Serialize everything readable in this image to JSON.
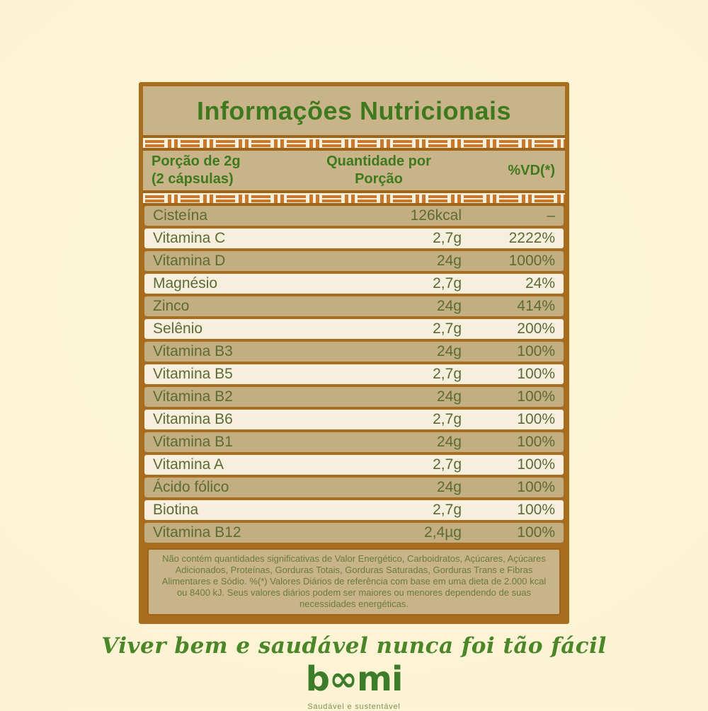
{
  "page": {
    "tagline": "Viver bem e saudável nunca foi tão fácil",
    "brand": {
      "logo_text": "boomi",
      "logo_display": "b∞mi",
      "slogan": "Saudável e sustentável"
    }
  },
  "table": {
    "title": "Informações Nutricionais",
    "header": {
      "portion_line1": "Porção de 2g",
      "portion_line2": "(2 cápsulas)",
      "amount_line1": "Quantidade por",
      "amount_line2": "Porção",
      "dv_label": "%VD(*)"
    },
    "rows": [
      {
        "name": "Cisteína",
        "amount": "126kcal",
        "dv": "–"
      },
      {
        "name": "Vitamina C",
        "amount": "2,7g",
        "dv": "2222%"
      },
      {
        "name": "Vitamina D",
        "amount": "24g",
        "dv": "1000%"
      },
      {
        "name": "Magnésio",
        "amount": "2,7g",
        "dv": "24%"
      },
      {
        "name": "Zinco",
        "amount": "24g",
        "dv": "414%"
      },
      {
        "name": "Selênio",
        "amount": "2,7g",
        "dv": "200%"
      },
      {
        "name": "Vitamina B3",
        "amount": "24g",
        "dv": "100%"
      },
      {
        "name": "Vitamina B5",
        "amount": "2,7g",
        "dv": "100%"
      },
      {
        "name": "Vitamina B2",
        "amount": "24g",
        "dv": "100%"
      },
      {
        "name": "Vitamina B6",
        "amount": "2,7g",
        "dv": "100%"
      },
      {
        "name": "Vitamina B1",
        "amount": "24g",
        "dv": "100%"
      },
      {
        "name": "Vitamina A",
        "amount": "2,7g",
        "dv": "100%"
      },
      {
        "name": "Ácido fólico",
        "amount": "24g",
        "dv": "100%"
      },
      {
        "name": "Biotina",
        "amount": "2,7g",
        "dv": "100%"
      },
      {
        "name": "Vitamina B12",
        "amount": "2,4µg",
        "dv": "100%"
      }
    ],
    "footnote": "Não contém quantidades significativas de Valor Energético, Carboidratos, Açúcares, Açúcares Adicionados, Proteínas, Gorduras Totais, Gorduras Saturadas, Gorduras Trans e Fibras Alimentares e Sódio. %(*) Valores Diários de referência com base em uma dieta de 2.000 kcal ou 8400 kJ. Seus valores diários podem ser maiores ou menores dependendo de suas necessidades energéticas."
  },
  "colors": {
    "background": "#fcf4d4",
    "panel_border_brown": "#a96d20",
    "tan_header": "#c9b489",
    "tan_row": "#c2ae81",
    "cream_row": "#f7efde",
    "stripe_orange": "#c8772c",
    "title_green": "#3e7a1d",
    "row_text_olive": "#5c6b35",
    "footnote_olive": "#6a7b3b",
    "tagline_green": "#4b8629",
    "logo_green": "#3d7c2a"
  }
}
